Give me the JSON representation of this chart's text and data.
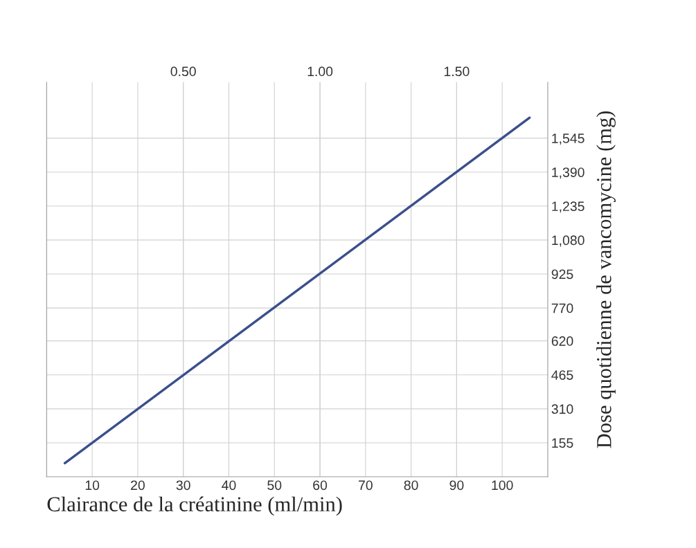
{
  "chart_data": {
    "type": "line",
    "xlabel": "Clairance de la créatinine (ml/min)",
    "ylabel": "Dose quotidienne de vancomycine (mg)",
    "x": [
      4,
      106
    ],
    "series": [
      {
        "color": "#3b4f8c",
        "values": [
          62,
          1638
        ]
      }
    ],
    "xlim": [
      0,
      110
    ],
    "xticks": [
      10,
      20,
      30,
      40,
      50,
      60,
      70,
      80,
      90,
      100
    ],
    "x2lim": [
      0,
      1.8333
    ],
    "x2ticks": [
      {
        "value": 0.5,
        "label": "0.50"
      },
      {
        "value": 1.0,
        "label": "1.00"
      },
      {
        "value": 1.5,
        "label": "1.50"
      }
    ],
    "ylim": [
      0,
      1800
    ],
    "yticks": [
      {
        "value": 155,
        "label": "155"
      },
      {
        "value": 310,
        "label": "310"
      },
      {
        "value": 465,
        "label": "465"
      },
      {
        "value": 620,
        "label": "620"
      },
      {
        "value": 770,
        "label": "770"
      },
      {
        "value": 925,
        "label": "925"
      },
      {
        "value": 1080,
        "label": "1,080"
      },
      {
        "value": 1235,
        "label": "1,235"
      },
      {
        "value": 1390,
        "label": "1,390"
      },
      {
        "value": 1545,
        "label": "1,545"
      }
    ],
    "grid": true,
    "marker": "none",
    "line_style": "solid"
  }
}
